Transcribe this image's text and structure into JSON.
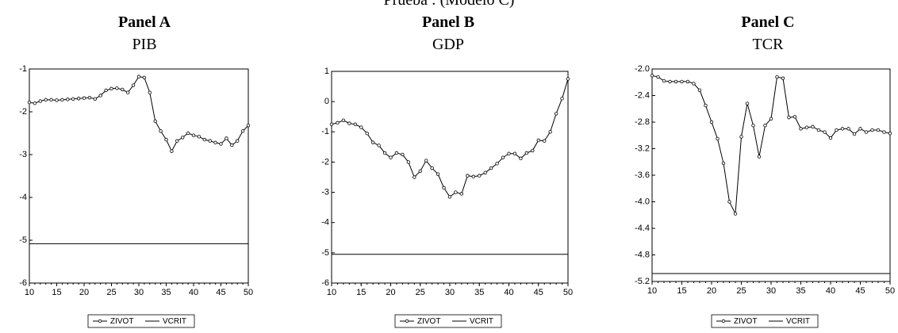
{
  "page_title": "Prueba : (Modelo C)",
  "chart_data": [
    {
      "type": "line",
      "title": "Panel A",
      "subtitle": "PIB",
      "x": [
        10,
        11,
        12,
        13,
        14,
        15,
        16,
        17,
        18,
        19,
        20,
        21,
        22,
        23,
        24,
        25,
        26,
        27,
        28,
        29,
        30,
        31,
        32,
        33,
        34,
        35,
        36,
        37,
        38,
        39,
        40,
        41,
        42,
        43,
        44,
        45,
        46,
        47,
        48,
        49,
        50
      ],
      "xlim": [
        10,
        50
      ],
      "xticks": [
        10,
        15,
        20,
        25,
        30,
        35,
        40,
        45,
        50
      ],
      "ylim": [
        -6,
        -1
      ],
      "yticks": [
        -6,
        -5,
        -4,
        -3,
        -2,
        -1
      ],
      "series": [
        {
          "name": "ZIVOT",
          "color": "#000000",
          "marker": "circle",
          "values": [
            -1.78,
            -1.8,
            -1.75,
            -1.72,
            -1.72,
            -1.73,
            -1.72,
            -1.71,
            -1.7,
            -1.69,
            -1.68,
            -1.67,
            -1.7,
            -1.62,
            -1.5,
            -1.46,
            -1.45,
            -1.48,
            -1.55,
            -1.38,
            -1.18,
            -1.2,
            -1.55,
            -2.22,
            -2.45,
            -2.65,
            -2.92,
            -2.68,
            -2.6,
            -2.5,
            -2.55,
            -2.58,
            -2.65,
            -2.68,
            -2.72,
            -2.75,
            -2.62,
            -2.78,
            -2.68,
            -2.45,
            -2.32
          ]
        },
        {
          "name": "VCRIT",
          "color": "#000000",
          "values": [
            -5.08,
            -5.08,
            -5.08,
            -5.08,
            -5.08,
            -5.08,
            -5.08,
            -5.08,
            -5.08,
            -5.08,
            -5.08,
            -5.08,
            -5.08,
            -5.08,
            -5.08,
            -5.08,
            -5.08,
            -5.08,
            -5.08,
            -5.08,
            -5.08,
            -5.08,
            -5.08,
            -5.08,
            -5.08,
            -5.08,
            -5.08,
            -5.08,
            -5.08,
            -5.08,
            -5.08,
            -5.08,
            -5.08,
            -5.08,
            -5.08,
            -5.08,
            -5.08,
            -5.08,
            -5.08,
            -5.08,
            -5.08
          ]
        }
      ]
    },
    {
      "type": "line",
      "title": "Panel B",
      "subtitle": "GDP",
      "x": [
        10,
        11,
        12,
        13,
        14,
        15,
        16,
        17,
        18,
        19,
        20,
        21,
        22,
        23,
        24,
        25,
        26,
        27,
        28,
        29,
        30,
        31,
        32,
        33,
        34,
        35,
        36,
        37,
        38,
        39,
        40,
        41,
        42,
        43,
        44,
        45,
        46,
        47,
        48,
        49,
        50
      ],
      "xlim": [
        10,
        50
      ],
      "xticks": [
        10,
        15,
        20,
        25,
        30,
        35,
        40,
        45,
        50
      ],
      "ylim": [
        -6,
        1
      ],
      "yticks": [
        -6,
        -5,
        -4,
        -3,
        -2,
        -1,
        0,
        1
      ],
      "series": [
        {
          "name": "ZIVOT",
          "color": "#000000",
          "marker": "circle",
          "values": [
            -0.75,
            -0.7,
            -0.62,
            -0.72,
            -0.75,
            -0.85,
            -1.05,
            -1.35,
            -1.45,
            -1.7,
            -1.85,
            -1.7,
            -1.75,
            -2.0,
            -2.5,
            -2.3,
            -1.95,
            -2.2,
            -2.4,
            -2.85,
            -3.15,
            -3.0,
            -3.05,
            -2.45,
            -2.48,
            -2.45,
            -2.35,
            -2.2,
            -2.05,
            -1.85,
            -1.72,
            -1.72,
            -1.88,
            -1.7,
            -1.62,
            -1.28,
            -1.3,
            -1.0,
            -0.4,
            0.1,
            0.75
          ]
        },
        {
          "name": "VCRIT",
          "color": "#000000",
          "values": [
            -5.05,
            -5.05,
            -5.05,
            -5.05,
            -5.05,
            -5.05,
            -5.05,
            -5.05,
            -5.05,
            -5.05,
            -5.05,
            -5.05,
            -5.05,
            -5.05,
            -5.05,
            -5.05,
            -5.05,
            -5.05,
            -5.05,
            -5.05,
            -5.05,
            -5.05,
            -5.05,
            -5.05,
            -5.05,
            -5.05,
            -5.05,
            -5.05,
            -5.05,
            -5.05,
            -5.05,
            -5.05,
            -5.05,
            -5.05,
            -5.05,
            -5.05,
            -5.05,
            -5.05,
            -5.05,
            -5.05,
            -5.05
          ]
        }
      ]
    },
    {
      "type": "line",
      "title": "Panel C",
      "subtitle": "TCR",
      "x": [
        10,
        11,
        12,
        13,
        14,
        15,
        16,
        17,
        18,
        19,
        20,
        21,
        22,
        23,
        24,
        25,
        26,
        27,
        28,
        29,
        30,
        31,
        32,
        33,
        34,
        35,
        36,
        37,
        38,
        39,
        40,
        41,
        42,
        43,
        44,
        45,
        46,
        47,
        48,
        49,
        50
      ],
      "xlim": [
        10,
        50
      ],
      "xticks": [
        10,
        15,
        20,
        25,
        30,
        35,
        40,
        45,
        50
      ],
      "ylim": [
        -5.2,
        -2.0
      ],
      "yticks": [
        -5.2,
        -4.8,
        -4.4,
        {
          "value": -4.0,
          "label": "-4.0"
        },
        -3.6,
        -3.2,
        -2.8,
        -2.4,
        {
          "value": -2.0,
          "label": "-2.0"
        }
      ],
      "series": [
        {
          "name": "ZIVOT",
          "color": "#000000",
          "marker": "circle",
          "values": [
            -2.1,
            -2.12,
            -2.18,
            -2.19,
            -2.19,
            -2.19,
            -2.19,
            -2.22,
            -2.32,
            -2.55,
            -2.8,
            -3.05,
            -3.42,
            -4.0,
            -4.18,
            -3.02,
            -2.52,
            -2.85,
            -3.32,
            -2.85,
            -2.75,
            -2.12,
            -2.14,
            -2.73,
            -2.72,
            -2.9,
            -2.88,
            -2.87,
            -2.92,
            -2.95,
            -3.04,
            -2.92,
            -2.9,
            -2.9,
            -2.98,
            -2.9,
            -2.95,
            -2.92,
            -2.92,
            -2.95,
            -2.97
          ]
        },
        {
          "name": "VCRIT",
          "color": "#000000",
          "values": [
            -5.08,
            -5.08,
            -5.08,
            -5.08,
            -5.08,
            -5.08,
            -5.08,
            -5.08,
            -5.08,
            -5.08,
            -5.08,
            -5.08,
            -5.08,
            -5.08,
            -5.08,
            -5.08,
            -5.08,
            -5.08,
            -5.08,
            -5.08,
            -5.08,
            -5.08,
            -5.08,
            -5.08,
            -5.08,
            -5.08,
            -5.08,
            -5.08,
            -5.08,
            -5.08,
            -5.08,
            -5.08,
            -5.08,
            -5.08,
            -5.08,
            -5.08,
            -5.08,
            -5.08,
            -5.08,
            -5.08,
            -5.08
          ]
        }
      ]
    }
  ]
}
